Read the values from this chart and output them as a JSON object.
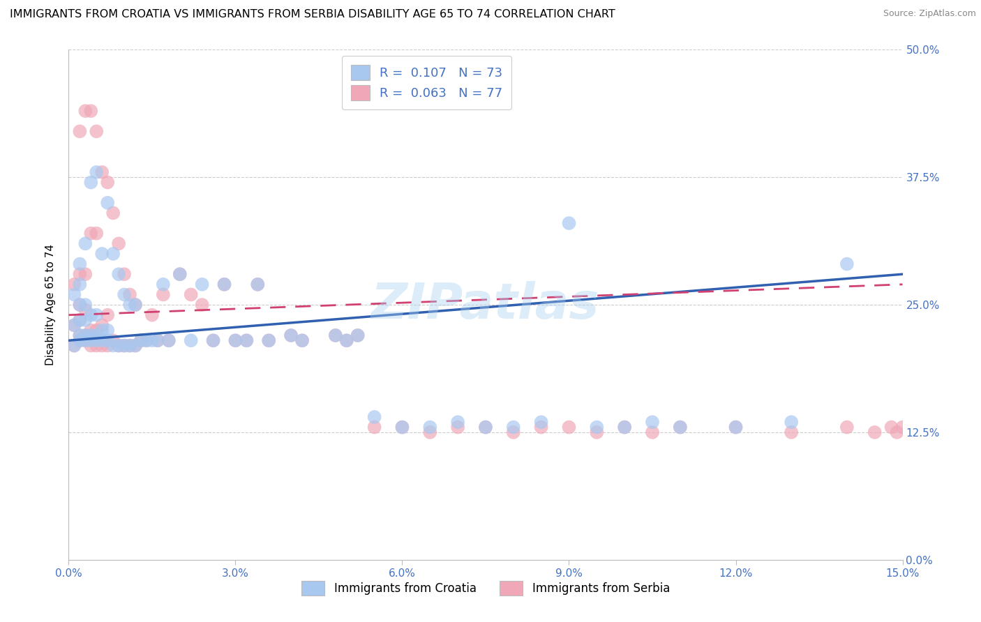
{
  "title": "IMMIGRANTS FROM CROATIA VS IMMIGRANTS FROM SERBIA DISABILITY AGE 65 TO 74 CORRELATION CHART",
  "source": "Source: ZipAtlas.com",
  "ylabel": "Disability Age 65 to 74",
  "xlim": [
    0.0,
    0.15
  ],
  "ylim": [
    0.0,
    0.5
  ],
  "xticks": [
    0.0,
    0.03,
    0.06,
    0.09,
    0.12,
    0.15
  ],
  "yticks": [
    0.0,
    0.125,
    0.25,
    0.375,
    0.5
  ],
  "croatia_R": 0.107,
  "croatia_N": 73,
  "serbia_R": 0.063,
  "serbia_N": 77,
  "croatia_color": "#a8c8f0",
  "serbia_color": "#f0a8b8",
  "trendline_croatia_color": "#3060b0",
  "trendline_serbia_color": "#d04070",
  "background_color": "#FFFFFF",
  "grid_color": "#CCCCCC",
  "watermark": "ZIPatlas",
  "axis_label_color": "#4472C4",
  "title_fontsize": 11.5,
  "legend_text_color": "#222222",
  "legend_value_color": "#4472C4",
  "croatia_x": [
    0.001,
    0.001,
    0.001,
    0.002,
    0.002,
    0.002,
    0.002,
    0.002,
    0.002,
    0.003,
    0.003,
    0.003,
    0.003,
    0.003,
    0.004,
    0.004,
    0.004,
    0.004,
    0.005,
    0.005,
    0.005,
    0.005,
    0.006,
    0.006,
    0.006,
    0.007,
    0.007,
    0.007,
    0.008,
    0.008,
    0.009,
    0.009,
    0.01,
    0.01,
    0.011,
    0.011,
    0.012,
    0.012,
    0.013,
    0.014,
    0.015,
    0.016,
    0.017,
    0.018,
    0.02,
    0.022,
    0.024,
    0.026,
    0.028,
    0.03,
    0.032,
    0.034,
    0.036,
    0.04,
    0.042,
    0.048,
    0.05,
    0.052,
    0.055,
    0.06,
    0.065,
    0.07,
    0.075,
    0.08,
    0.085,
    0.09,
    0.095,
    0.1,
    0.105,
    0.11,
    0.12,
    0.13,
    0.14
  ],
  "croatia_y": [
    0.21,
    0.23,
    0.26,
    0.215,
    0.22,
    0.235,
    0.25,
    0.27,
    0.29,
    0.215,
    0.22,
    0.235,
    0.25,
    0.31,
    0.215,
    0.22,
    0.24,
    0.37,
    0.215,
    0.22,
    0.24,
    0.38,
    0.215,
    0.225,
    0.3,
    0.215,
    0.225,
    0.35,
    0.21,
    0.3,
    0.21,
    0.28,
    0.21,
    0.26,
    0.21,
    0.25,
    0.21,
    0.25,
    0.215,
    0.215,
    0.215,
    0.215,
    0.27,
    0.215,
    0.28,
    0.215,
    0.27,
    0.215,
    0.27,
    0.215,
    0.215,
    0.27,
    0.215,
    0.22,
    0.215,
    0.22,
    0.215,
    0.22,
    0.14,
    0.13,
    0.13,
    0.135,
    0.13,
    0.13,
    0.135,
    0.33,
    0.13,
    0.13,
    0.135,
    0.13,
    0.13,
    0.135,
    0.29
  ],
  "serbia_x": [
    0.001,
    0.001,
    0.001,
    0.002,
    0.002,
    0.002,
    0.002,
    0.002,
    0.002,
    0.003,
    0.003,
    0.003,
    0.003,
    0.003,
    0.004,
    0.004,
    0.004,
    0.004,
    0.005,
    0.005,
    0.005,
    0.005,
    0.006,
    0.006,
    0.006,
    0.007,
    0.007,
    0.007,
    0.008,
    0.008,
    0.009,
    0.009,
    0.01,
    0.01,
    0.011,
    0.011,
    0.012,
    0.012,
    0.013,
    0.014,
    0.015,
    0.016,
    0.017,
    0.018,
    0.02,
    0.022,
    0.024,
    0.026,
    0.028,
    0.03,
    0.032,
    0.034,
    0.036,
    0.04,
    0.042,
    0.048,
    0.05,
    0.052,
    0.055,
    0.06,
    0.065,
    0.07,
    0.075,
    0.08,
    0.085,
    0.09,
    0.095,
    0.1,
    0.105,
    0.11,
    0.12,
    0.13,
    0.14,
    0.145,
    0.148,
    0.149,
    0.15
  ],
  "serbia_y": [
    0.21,
    0.23,
    0.27,
    0.215,
    0.22,
    0.235,
    0.25,
    0.28,
    0.42,
    0.215,
    0.22,
    0.245,
    0.28,
    0.44,
    0.21,
    0.225,
    0.32,
    0.44,
    0.21,
    0.225,
    0.32,
    0.42,
    0.21,
    0.23,
    0.38,
    0.21,
    0.24,
    0.37,
    0.215,
    0.34,
    0.21,
    0.31,
    0.21,
    0.28,
    0.21,
    0.26,
    0.21,
    0.25,
    0.215,
    0.215,
    0.24,
    0.215,
    0.26,
    0.215,
    0.28,
    0.26,
    0.25,
    0.215,
    0.27,
    0.215,
    0.215,
    0.27,
    0.215,
    0.22,
    0.215,
    0.22,
    0.215,
    0.22,
    0.13,
    0.13,
    0.125,
    0.13,
    0.13,
    0.125,
    0.13,
    0.13,
    0.125,
    0.13,
    0.125,
    0.13,
    0.13,
    0.125,
    0.13,
    0.125,
    0.13,
    0.125,
    0.13
  ]
}
